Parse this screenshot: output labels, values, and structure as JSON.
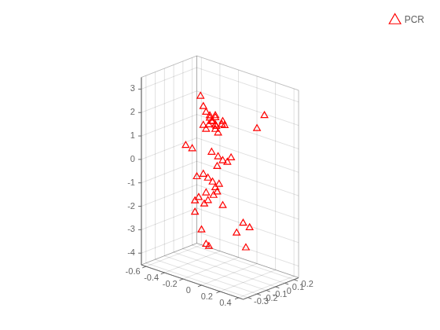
{
  "chart_data": {
    "type": "scatter3d",
    "series": [
      {
        "name": "PCR",
        "color": "#FF0000",
        "marker": "triangle",
        "x": [
          -0.55,
          -0.05,
          -0.05,
          -0.32,
          -0.28,
          -0.35,
          -0.38,
          -0.32,
          -0.28,
          -0.22,
          -0.38,
          -0.32,
          -0.28,
          -0.28,
          -0.25,
          -0.22,
          -0.18,
          -0.15,
          -0.35,
          -0.3,
          -0.25,
          -0.22,
          -0.18,
          -0.42,
          -0.38,
          -0.32,
          -0.3,
          -0.28,
          -0.22,
          -0.18,
          -0.12,
          -0.35,
          -0.3,
          -0.25,
          -0.22,
          -0.6,
          -0.48,
          -0.42,
          -0.35,
          -0.3,
          -0.25,
          -0.48,
          -0.45,
          -0.42,
          -0.38,
          -0.32,
          -0.6,
          0.05,
          0.12,
          0.28,
          0.1,
          0.05
        ],
        "y": [
          0.1,
          0.02,
          0.08,
          0.15,
          0.1,
          0.15,
          0.12,
          0.08,
          0.08,
          0.1,
          0.05,
          0.05,
          0.05,
          0.08,
          0.05,
          0.03,
          0.05,
          0.05,
          0.02,
          0.02,
          0.02,
          0.02,
          0.02,
          0.0,
          0.0,
          0.0,
          0.0,
          0.0,
          0.0,
          0.0,
          0.0,
          -0.05,
          -0.05,
          -0.05,
          -0.05,
          0.18,
          0.18,
          0.18,
          0.18,
          0.18,
          0.18,
          0.12,
          0.12,
          0.12,
          0.12,
          0.12,
          0.08,
          0.05,
          0.05,
          0.05,
          0.15,
          0.08
        ],
        "z": [
          -0.1,
          0.3,
          -3.0,
          0.8,
          -0.5,
          1.5,
          1.4,
          1.4,
          1.3,
          1.5,
          1.2,
          1.3,
          1.5,
          1.3,
          1.2,
          1.4,
          1.5,
          1.5,
          -0.8,
          -0.9,
          -1.0,
          -1.2,
          -1.0,
          -2.0,
          -1.8,
          -2.0,
          -1.5,
          -1.8,
          -1.5,
          -1.3,
          -1.8,
          -0.8,
          -3.0,
          -3.55,
          -3.6,
          -3.0,
          0.7,
          -0.2,
          -0.3,
          -0.4,
          -0.4,
          2.2,
          1.8,
          1.6,
          1.5,
          1.5,
          0.0,
          -2.4,
          -2.5,
          2.5,
          1.55,
          -3.5
        ]
      }
    ],
    "xlim": [
      -0.65,
      0.45
    ],
    "ylim": [
      -0.35,
      0.25
    ],
    "zlim": [
      -4.5,
      3.5
    ],
    "xticks": [
      -0.6,
      -0.4,
      -0.2,
      0,
      0.2,
      0.4
    ],
    "yticks": [
      -0.3,
      -0.2,
      -0.1,
      0,
      0.1,
      0.2
    ],
    "zticks": [
      -4,
      -3,
      -2,
      -1,
      0,
      1,
      2,
      3
    ],
    "grid": true,
    "legend": "upper right"
  }
}
